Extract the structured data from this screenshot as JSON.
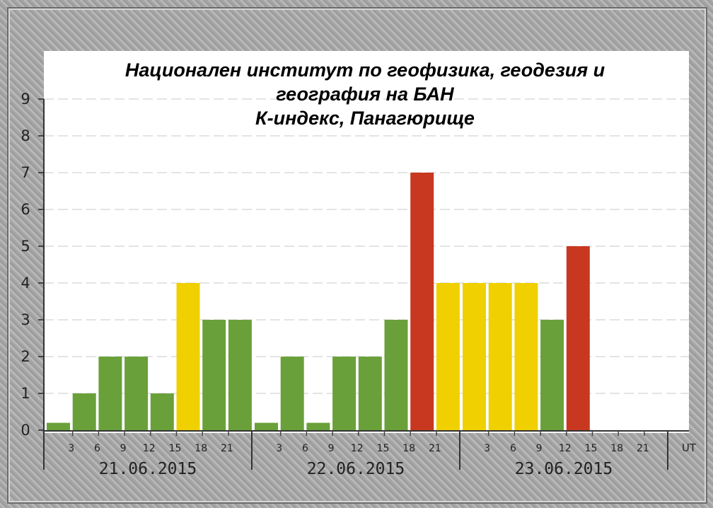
{
  "chart_data": {
    "type": "bar",
    "title_lines": [
      "Национален институт по геофизика, геодезия и",
      "география на БАН",
      "К-индекс, Панагюрище"
    ],
    "ylim": [
      0,
      9
    ],
    "yticks": [
      "0",
      "1",
      "2",
      "3",
      "4",
      "5",
      "6",
      "7",
      "8",
      "9"
    ],
    "xunit_label": "UT",
    "hour_ticks": [
      "3",
      "6",
      "9",
      "12",
      "15",
      "18",
      "21"
    ],
    "grid": "horizontal dashed",
    "days": [
      {
        "date": "21.06.2015",
        "values": [
          0.2,
          1,
          2,
          2,
          1,
          4,
          3,
          3
        ]
      },
      {
        "date": "22.06.2015",
        "values": [
          0.2,
          2,
          0.2,
          2,
          2,
          3,
          7,
          4
        ]
      },
      {
        "date": "23.06.2015",
        "values": [
          4,
          4,
          4,
          3,
          5,
          null,
          null,
          null
        ]
      }
    ],
    "colors": {
      "green": "#6aa03a",
      "yellow": "#f0d000",
      "red": "#c83820",
      "plot_bg": "#ffffff",
      "grid": "#e4e4e4"
    },
    "color_thresholds": {
      "yellow_min": 4,
      "red_min": 5
    }
  }
}
